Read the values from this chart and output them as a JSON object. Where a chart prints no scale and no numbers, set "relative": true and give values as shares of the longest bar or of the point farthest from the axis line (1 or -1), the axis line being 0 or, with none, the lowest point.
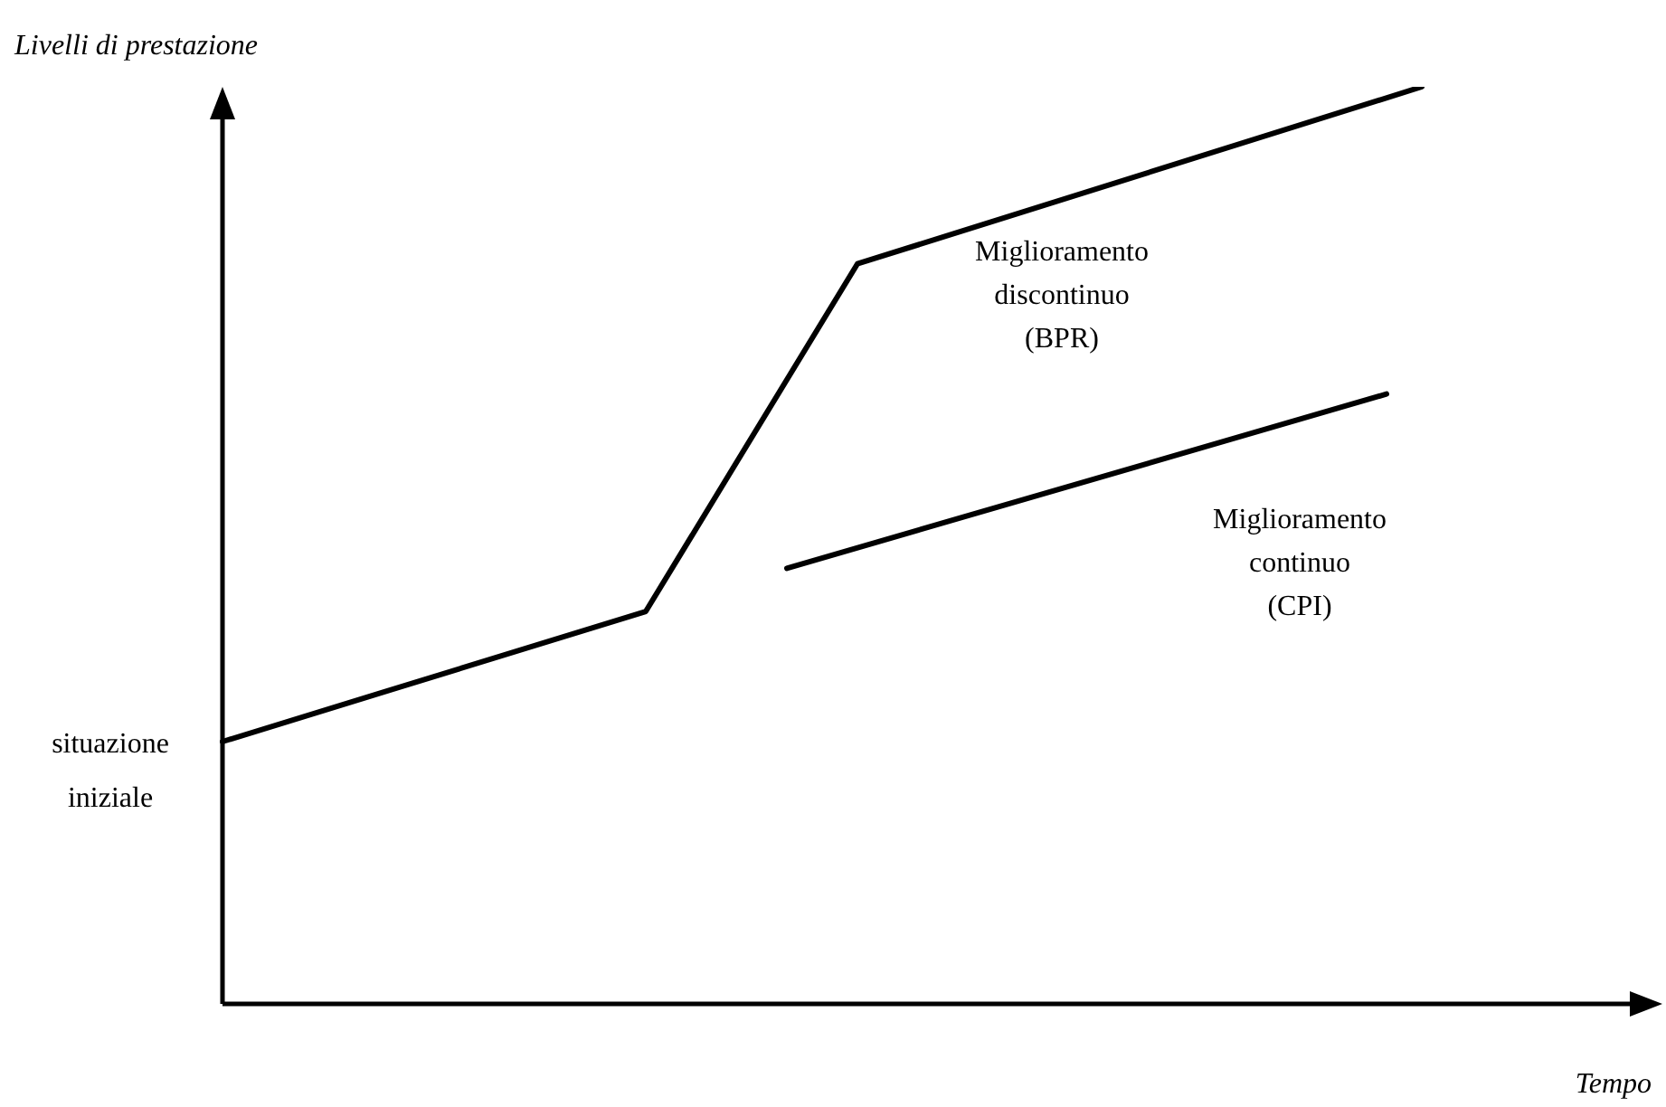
{
  "chart_data": {
    "type": "line",
    "relative": true,
    "xlabel": "Tempo",
    "ylabel": "Livelli di prestazione",
    "legend": false,
    "marker": "none",
    "line_style": "solid",
    "categories": [
      null,
      null,
      null,
      null,
      null,
      null,
      null,
      null,
      null,
      null,
      null,
      null,
      null,
      null,
      null,
      null,
      null,
      null,
      null,
      null,
      null,
      null,
      null,
      null,
      null,
      null,
      null,
      null,
      null,
      null,
      null,
      null,
      null,
      null,
      null,
      null,
      null,
      null,
      null,
      null,
      null
    ],
    "series": [
      {
        "name": "Miglioramento discontinuo (BPR)",
        "color": "#000000",
        "values": [
          0.286,
          null,
          null,
          null,
          null,
          null,
          null,
          null,
          null,
          null,
          null,
          null,
          0.428,
          null,
          null,
          null,
          null,
          null,
          0.807,
          null,
          null,
          null,
          null,
          null,
          null,
          null,
          null,
          null,
          null,
          null,
          null,
          null,
          null,
          null,
          1,
          null,
          null,
          null,
          null,
          null,
          null
        ]
      },
      {
        "name": "Miglioramento continuo (CPI)",
        "color": "#000000",
        "values": [
          null,
          null,
          null,
          null,
          null,
          null,
          null,
          null,
          null,
          null,
          null,
          null,
          null,
          null,
          null,
          null,
          0.475,
          null,
          null,
          null,
          null,
          null,
          null,
          null,
          null,
          null,
          null,
          null,
          null,
          null,
          null,
          null,
          null,
          0.665,
          null,
          null,
          null,
          null,
          null,
          null,
          null
        ]
      }
    ],
    "annotations": [
      "situazione iniziale"
    ]
  }
}
